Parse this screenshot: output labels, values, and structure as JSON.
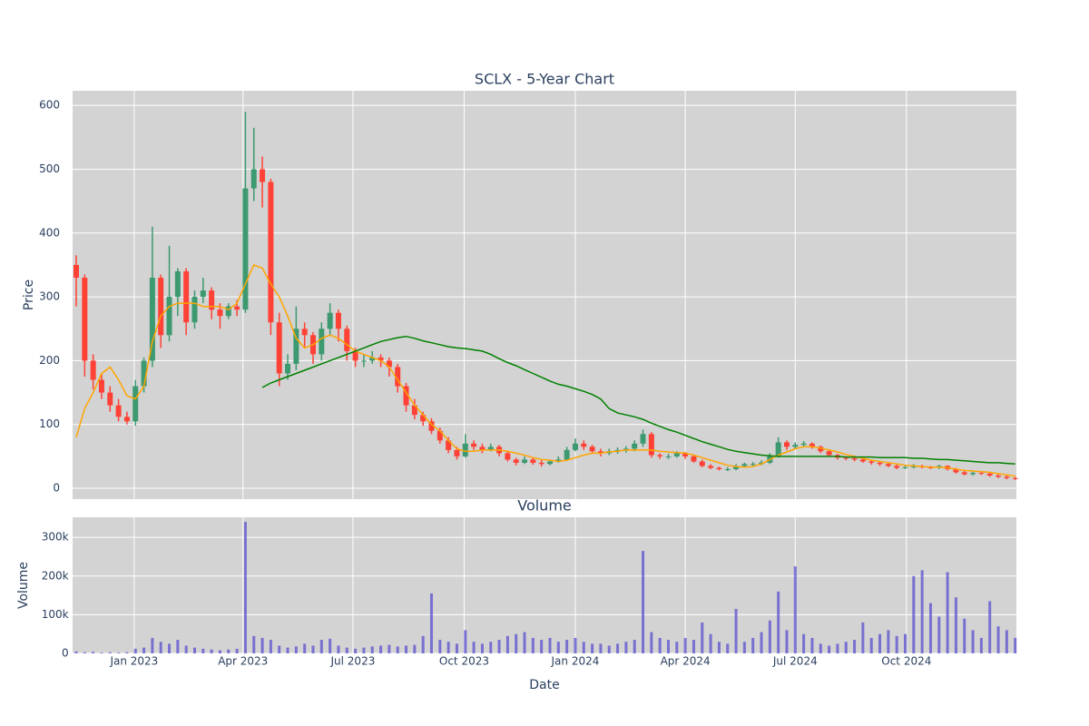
{
  "chart_data": {
    "type": "candlestick",
    "title": "SCLX - 5-Year Chart",
    "xlabel": "Date",
    "ylabel": "Price",
    "background": "#d3d3d3",
    "grid": true,
    "increasing_color": "#3d9970",
    "decreasing_color": "#ff4136",
    "x": [
      "2022-11-14",
      "2022-11-21",
      "2022-11-28",
      "2022-12-05",
      "2022-12-12",
      "2022-12-19",
      "2022-12-26",
      "2023-01-02",
      "2023-01-09",
      "2023-01-16",
      "2023-01-23",
      "2023-01-30",
      "2023-02-06",
      "2023-02-13",
      "2023-02-20",
      "2023-02-27",
      "2023-03-06",
      "2023-03-13",
      "2023-03-20",
      "2023-03-27",
      "2023-04-03",
      "2023-04-10",
      "2023-04-17",
      "2023-04-24",
      "2023-05-01",
      "2023-05-08",
      "2023-05-15",
      "2023-05-22",
      "2023-05-29",
      "2023-06-05",
      "2023-06-12",
      "2023-06-19",
      "2023-06-26",
      "2023-07-03",
      "2023-07-10",
      "2023-07-17",
      "2023-07-24",
      "2023-07-31",
      "2023-08-07",
      "2023-08-14",
      "2023-08-21",
      "2023-08-28",
      "2023-09-04",
      "2023-09-11",
      "2023-09-18",
      "2023-09-25",
      "2023-10-02",
      "2023-10-09",
      "2023-10-16",
      "2023-10-23",
      "2023-10-30",
      "2023-11-06",
      "2023-11-13",
      "2023-11-20",
      "2023-11-27",
      "2023-12-04",
      "2023-12-11",
      "2023-12-18",
      "2023-12-25",
      "2024-01-01",
      "2024-01-08",
      "2024-01-15",
      "2024-01-22",
      "2024-01-29",
      "2024-02-05",
      "2024-02-12",
      "2024-02-19",
      "2024-02-26",
      "2024-03-04",
      "2024-03-11",
      "2024-03-18",
      "2024-03-25",
      "2024-04-01",
      "2024-04-08",
      "2024-04-15",
      "2024-04-22",
      "2024-04-29",
      "2024-05-06",
      "2024-05-13",
      "2024-05-20",
      "2024-05-27",
      "2024-06-03",
      "2024-06-10",
      "2024-06-17",
      "2024-06-24",
      "2024-07-01",
      "2024-07-08",
      "2024-07-15",
      "2024-07-22",
      "2024-07-29",
      "2024-08-05",
      "2024-08-12",
      "2024-08-19",
      "2024-08-26",
      "2024-09-02",
      "2024-09-09",
      "2024-09-16",
      "2024-09-23",
      "2024-09-30",
      "2024-10-07",
      "2024-10-14",
      "2024-10-21",
      "2024-10-28",
      "2024-11-04",
      "2024-11-11",
      "2024-11-18",
      "2024-11-25",
      "2024-12-02",
      "2024-12-09",
      "2024-12-16",
      "2024-12-23",
      "2024-12-30"
    ],
    "open": [
      350,
      330,
      200,
      170,
      150,
      130,
      112,
      105,
      160,
      200,
      330,
      240,
      300,
      340,
      260,
      300,
      310,
      280,
      270,
      285,
      280,
      470,
      500,
      480,
      260,
      180,
      195,
      250,
      240,
      210,
      250,
      275,
      250,
      215,
      200,
      200,
      205,
      200,
      190,
      160,
      130,
      115,
      105,
      90,
      75,
      60,
      50,
      70,
      65,
      60,
      65,
      55,
      45,
      40,
      45,
      40,
      38,
      42,
      45,
      60,
      70,
      65,
      58,
      55,
      58,
      60,
      62,
      70,
      85,
      52,
      50,
      50,
      55,
      50,
      42,
      35,
      32,
      30,
      30,
      35,
      38,
      38,
      40,
      50,
      72,
      65,
      68,
      70,
      65,
      58,
      52,
      48,
      47,
      45,
      42,
      40,
      38,
      35,
      32,
      33,
      35,
      33,
      32,
      35,
      30,
      25,
      22,
      24,
      23,
      20,
      18,
      16
    ],
    "high": [
      365,
      335,
      210,
      180,
      160,
      140,
      120,
      170,
      205,
      410,
      335,
      380,
      345,
      345,
      310,
      330,
      315,
      290,
      290,
      295,
      590,
      565,
      520,
      485,
      275,
      210,
      285,
      260,
      245,
      260,
      290,
      280,
      255,
      220,
      210,
      215,
      210,
      205,
      195,
      165,
      140,
      120,
      110,
      95,
      80,
      65,
      85,
      75,
      70,
      70,
      68,
      58,
      48,
      50,
      48,
      44,
      45,
      50,
      65,
      78,
      75,
      68,
      62,
      62,
      64,
      66,
      75,
      92,
      88,
      55,
      54,
      58,
      57,
      52,
      45,
      38,
      34,
      33,
      38,
      40,
      41,
      44,
      55,
      80,
      75,
      72,
      74,
      72,
      67,
      60,
      54,
      50,
      49,
      47,
      44,
      42,
      40,
      37,
      36,
      38,
      37,
      35,
      37,
      36,
      32,
      27,
      26,
      26,
      25,
      22,
      20,
      18
    ],
    "low": [
      285,
      175,
      155,
      140,
      120,
      105,
      100,
      98,
      150,
      190,
      220,
      230,
      270,
      240,
      250,
      290,
      265,
      250,
      265,
      270,
      275,
      450,
      440,
      240,
      160,
      170,
      185,
      220,
      195,
      200,
      240,
      230,
      200,
      190,
      190,
      195,
      190,
      175,
      150,
      120,
      108,
      98,
      85,
      70,
      55,
      45,
      48,
      60,
      55,
      58,
      50,
      42,
      36,
      38,
      37,
      34,
      36,
      40,
      43,
      58,
      60,
      54,
      50,
      52,
      54,
      56,
      58,
      65,
      48,
      46,
      46,
      48,
      46,
      40,
      33,
      30,
      28,
      27,
      28,
      33,
      35,
      36,
      38,
      48,
      60,
      62,
      64,
      62,
      55,
      49,
      45,
      44,
      42,
      40,
      37,
      35,
      33,
      30,
      30,
      31,
      31,
      30,
      30,
      28,
      23,
      20,
      20,
      21,
      18,
      16,
      14,
      13
    ],
    "close": [
      330,
      200,
      170,
      150,
      130,
      112,
      105,
      160,
      200,
      330,
      240,
      300,
      340,
      260,
      300,
      310,
      280,
      270,
      285,
      280,
      470,
      500,
      480,
      260,
      180,
      195,
      250,
      240,
      210,
      250,
      275,
      250,
      215,
      200,
      200,
      205,
      200,
      190,
      160,
      130,
      115,
      105,
      90,
      75,
      60,
      50,
      70,
      65,
      60,
      65,
      55,
      45,
      40,
      45,
      40,
      38,
      42,
      45,
      60,
      70,
      65,
      58,
      55,
      58,
      60,
      62,
      70,
      85,
      52,
      50,
      50,
      55,
      50,
      42,
      35,
      32,
      30,
      30,
      35,
      38,
      38,
      40,
      50,
      72,
      65,
      68,
      70,
      65,
      58,
      52,
      48,
      47,
      45,
      42,
      40,
      38,
      35,
      32,
      33,
      35,
      33,
      32,
      35,
      30,
      25,
      22,
      24,
      23,
      20,
      18,
      16,
      15
    ],
    "series": [
      {
        "color": "orange",
        "values": [
          80,
          125,
          150,
          180,
          190,
          170,
          145,
          140,
          160,
          230,
          270,
          285,
          290,
          290,
          290,
          285,
          285,
          285,
          280,
          290,
          320,
          350,
          345,
          320,
          300,
          270,
          235,
          220,
          225,
          235,
          240,
          235,
          225,
          215,
          210,
          205,
          200,
          190,
          170,
          150,
          130,
          115,
          100,
          90,
          75,
          62,
          58,
          58,
          60,
          60,
          60,
          58,
          55,
          52,
          48,
          45,
          44,
          42,
          44,
          48,
          52,
          55,
          55,
          57,
          58,
          60,
          60,
          60,
          60,
          58,
          57,
          56,
          55,
          52,
          48,
          44,
          40,
          36,
          34,
          33,
          34,
          38,
          45,
          52,
          57,
          62,
          65,
          65,
          63,
          60,
          57,
          53,
          50,
          47,
          44,
          42,
          40,
          38,
          36,
          35,
          34,
          33,
          33,
          32,
          30,
          28,
          27,
          26,
          25,
          23,
          21,
          19
        ]
      },
      {
        "color": "green",
        "values": [
          null,
          null,
          null,
          null,
          null,
          null,
          null,
          null,
          null,
          null,
          null,
          null,
          null,
          null,
          null,
          null,
          null,
          null,
          null,
          null,
          null,
          null,
          158,
          165,
          170,
          175,
          180,
          185,
          190,
          195,
          200,
          205,
          210,
          215,
          220,
          225,
          230,
          233,
          236,
          238,
          235,
          231,
          228,
          225,
          222,
          220,
          219,
          217,
          215,
          210,
          203,
          197,
          192,
          186,
          180,
          174,
          168,
          163,
          160,
          156,
          152,
          147,
          140,
          125,
          118,
          115,
          112,
          108,
          102,
          97,
          92,
          88,
          83,
          78,
          73,
          69,
          65,
          61,
          58,
          56,
          54,
          52,
          51,
          50,
          50,
          50,
          50,
          50,
          50,
          50,
          50,
          49,
          49,
          49,
          49,
          48,
          48,
          48,
          48,
          47,
          47,
          46,
          45,
          45,
          44,
          43,
          42,
          41,
          40,
          40,
          39,
          38
        ]
      }
    ],
    "xlim": [
      "2022-11-11",
      "2024-12-31"
    ],
    "xticks": [
      {
        "value": "2023-01-01",
        "label": "Jan 2023"
      },
      {
        "value": "2023-04-01",
        "label": "Apr 2023"
      },
      {
        "value": "2023-07-01",
        "label": "Jul 2023"
      },
      {
        "value": "2023-10-01",
        "label": "Oct 2023"
      },
      {
        "value": "2024-01-01",
        "label": "Jan 2024"
      },
      {
        "value": "2024-04-01",
        "label": "Apr 2024"
      },
      {
        "value": "2024-07-01",
        "label": "Jul 2024"
      },
      {
        "value": "2024-10-01",
        "label": "Oct 2024"
      }
    ],
    "ylim": [
      -17,
      623
    ],
    "yticks": [
      0,
      100,
      200,
      300,
      400,
      500,
      600
    ],
    "volume": {
      "type": "bar",
      "title": "Volume",
      "ylabel": "Volume",
      "color": "#5a4fcf",
      "values": [
        5000,
        3000,
        4000,
        2000,
        3000,
        2000,
        3000,
        12000,
        15000,
        40000,
        30000,
        25000,
        35000,
        20000,
        15000,
        12000,
        10000,
        8000,
        10000,
        12000,
        340000,
        45000,
        40000,
        35000,
        20000,
        15000,
        18000,
        25000,
        20000,
        35000,
        38000,
        20000,
        15000,
        12000,
        15000,
        18000,
        20000,
        22000,
        18000,
        20000,
        22000,
        45000,
        155000,
        35000,
        30000,
        25000,
        60000,
        30000,
        25000,
        30000,
        35000,
        45000,
        50000,
        55000,
        40000,
        35000,
        40000,
        30000,
        35000,
        40000,
        30000,
        25000,
        25000,
        20000,
        25000,
        30000,
        35000,
        265000,
        55000,
        40000,
        35000,
        30000,
        40000,
        35000,
        80000,
        50000,
        30000,
        25000,
        115000,
        30000,
        40000,
        55000,
        85000,
        160000,
        60000,
        225000,
        50000,
        40000,
        25000,
        20000,
        25000,
        30000,
        35000,
        80000,
        40000,
        50000,
        60000,
        45000,
        50000,
        200000,
        215000,
        130000,
        95000,
        210000,
        145000,
        90000,
        60000,
        40000,
        135000,
        70000,
        60000,
        40000
      ],
      "ylim": [
        0,
        352000
      ],
      "yticks": [
        0,
        {
          "value": 100000,
          "label": "100k"
        },
        {
          "value": 200000,
          "label": "200k"
        },
        {
          "value": 300000,
          "label": "300k"
        }
      ]
    }
  }
}
